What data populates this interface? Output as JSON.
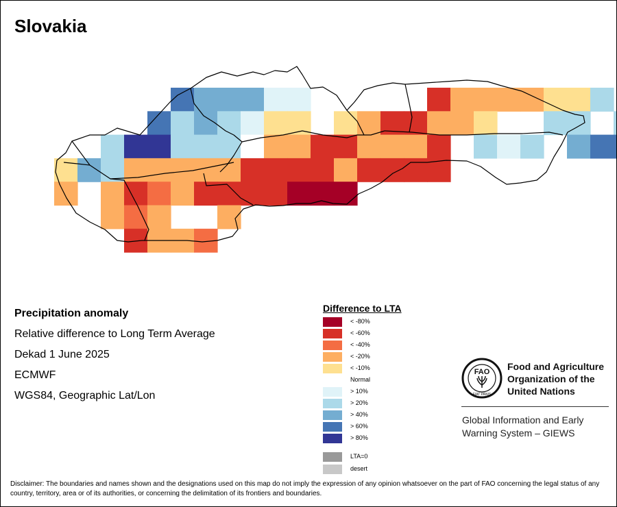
{
  "map": {
    "title": "Slovakia",
    "colors": {
      "border": "#000000",
      "lt80": "#a50026",
      "lt60": "#d73027",
      "lt40": "#f46d43",
      "lt20": "#fdae61",
      "lt10": "#fee090",
      "normal": "#ffffff",
      "gt10": "#e0f3f8",
      "gt20": "#abd9e9",
      "gt40": "#74add1",
      "gt60": "#4575b4",
      "gt80": "#313695",
      "lta0": "#999999",
      "desert": "#c8c8c8"
    }
  },
  "info": {
    "heading": "Precipitation anomaly",
    "line1": "Relative difference to Long Term Average",
    "line2": "Dekad 1 June 2025",
    "line3": "ECMWF",
    "line4": "WGS84, Geographic Lat/Lon"
  },
  "legend": {
    "title": "Difference to LTA",
    "items": [
      {
        "label": "< -80%",
        "color": "#a50026"
      },
      {
        "label": "< -60%",
        "color": "#d73027"
      },
      {
        "label": "< -40%",
        "color": "#f46d43"
      },
      {
        "label": "< -20%",
        "color": "#fdae61"
      },
      {
        "label": "< -10%",
        "color": "#fee090"
      },
      {
        "label": "Normal",
        "color": "#ffffff"
      },
      {
        "label": "> 10%",
        "color": "#e0f3f8"
      },
      {
        "label": "> 20%",
        "color": "#abd9e9"
      },
      {
        "label": "> 40%",
        "color": "#74add1"
      },
      {
        "label": "> 60%",
        "color": "#4575b4"
      },
      {
        "label": "> 80%",
        "color": "#313695"
      }
    ],
    "extra": [
      {
        "label": "LTA=0",
        "color": "#999999"
      },
      {
        "label": "desert",
        "color": "#c8c8c8"
      }
    ]
  },
  "branding": {
    "logo_text": "FAO",
    "logo_motto": "FIAT PANIS",
    "name_line1": "Food and Agriculture",
    "name_line2": "Organization of the",
    "name_line3": "United Nations",
    "system_line1": "Global Information and Early",
    "system_line2": "Warning System – GIEWS"
  },
  "disclaimer": "Disclaimer: The boundaries and names shown and the designations used on this map do not imply the expression of any opinion whatsoever on the part of FAO concerning the legal status of any country, territory, area or of its authorities, or concerning the delimitation of its frontiers and boundaries."
}
